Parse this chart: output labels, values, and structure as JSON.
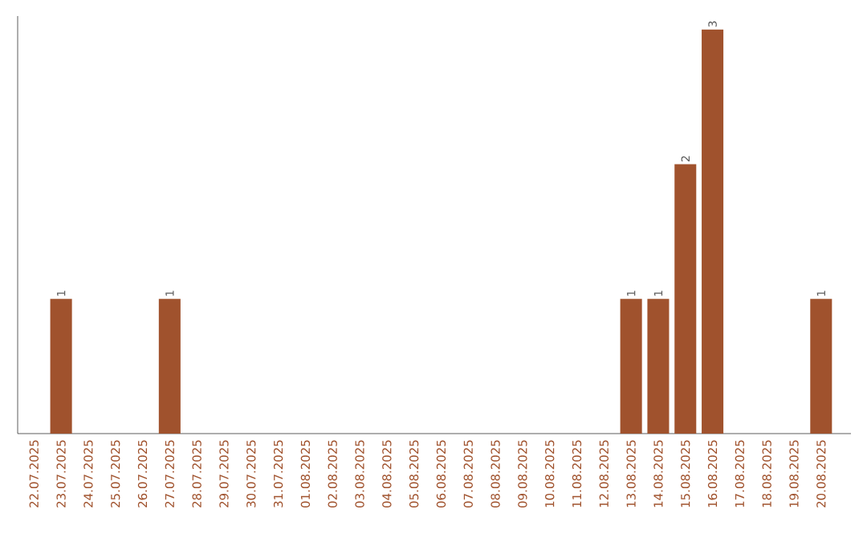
{
  "chart_data": {
    "type": "bar",
    "categories": [
      "22.07.2025",
      "23.07.2025",
      "24.07.2025",
      "25.07.2025",
      "26.07.2025",
      "27.07.2025",
      "28.07.2025",
      "29.07.2025",
      "30.07.2025",
      "31.07.2025",
      "01.08.2025",
      "02.08.2025",
      "03.08.2025",
      "04.08.2025",
      "05.08.2025",
      "06.08.2025",
      "07.08.2025",
      "08.08.2025",
      "09.08.2025",
      "10.08.2025",
      "11.08.2025",
      "12.08.2025",
      "13.08.2025",
      "14.08.2025",
      "15.08.2025",
      "16.08.2025",
      "17.08.2025",
      "18.08.2025",
      "19.08.2025",
      "20.08.2025"
    ],
    "values": [
      0,
      1,
      0,
      0,
      0,
      1,
      0,
      0,
      0,
      0,
      0,
      0,
      0,
      0,
      0,
      0,
      0,
      0,
      0,
      0,
      0,
      0,
      1,
      1,
      2,
      3,
      0,
      0,
      0,
      1
    ],
    "value_labels": [
      null,
      "1",
      null,
      null,
      null,
      "1",
      null,
      null,
      null,
      null,
      null,
      null,
      null,
      null,
      null,
      null,
      null,
      null,
      null,
      null,
      null,
      null,
      "1",
      "1",
      "2",
      "3",
      null,
      null,
      null,
      "1"
    ],
    "color": "#a0522d",
    "ylim": [
      0,
      3.1
    ],
    "tick_labels": "x"
  }
}
